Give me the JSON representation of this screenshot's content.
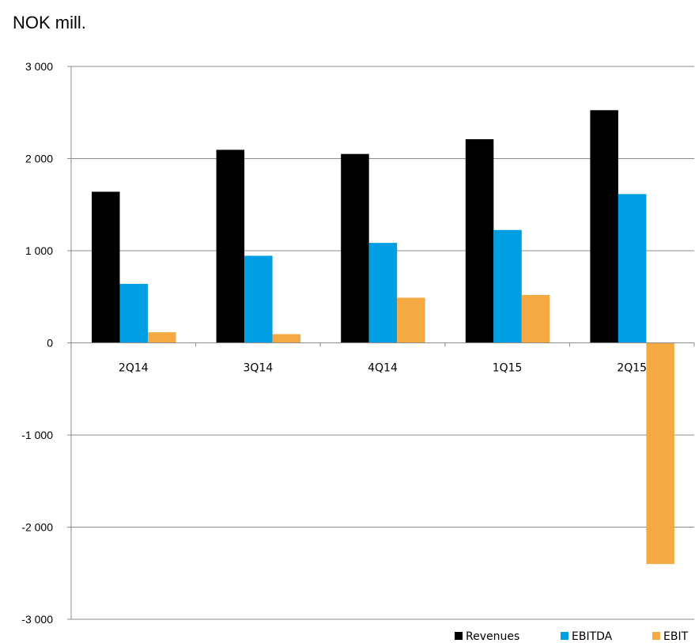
{
  "unit_label": "NOK mill.",
  "chart_data": {
    "type": "bar",
    "title": "",
    "xlabel": "",
    "ylabel": "NOK mill.",
    "categories": [
      "2Q14",
      "3Q14",
      "4Q14",
      "1Q15",
      "2Q15"
    ],
    "series": [
      {
        "name": "Revenues",
        "color": "#000000",
        "values": [
          1640,
          2095,
          2050,
          2210,
          2525
        ]
      },
      {
        "name": "EBITDA",
        "color": "#009fe3",
        "values": [
          640,
          945,
          1085,
          1225,
          1615
        ]
      },
      {
        "name": "EBIT",
        "color": "#f5a942",
        "values": [
          115,
          95,
          490,
          520,
          -2400
        ]
      }
    ],
    "ylim": [
      -3000,
      3000
    ],
    "yticks": [
      3000,
      2000,
      1000,
      0,
      -1000,
      -2000,
      -3000
    ],
    "ytick_labels": [
      "3 000",
      "2 000",
      "1 000",
      "0",
      "-1 000",
      "-2 000",
      "-3 000"
    ],
    "grid": true,
    "legend_position": "bottom-right"
  }
}
